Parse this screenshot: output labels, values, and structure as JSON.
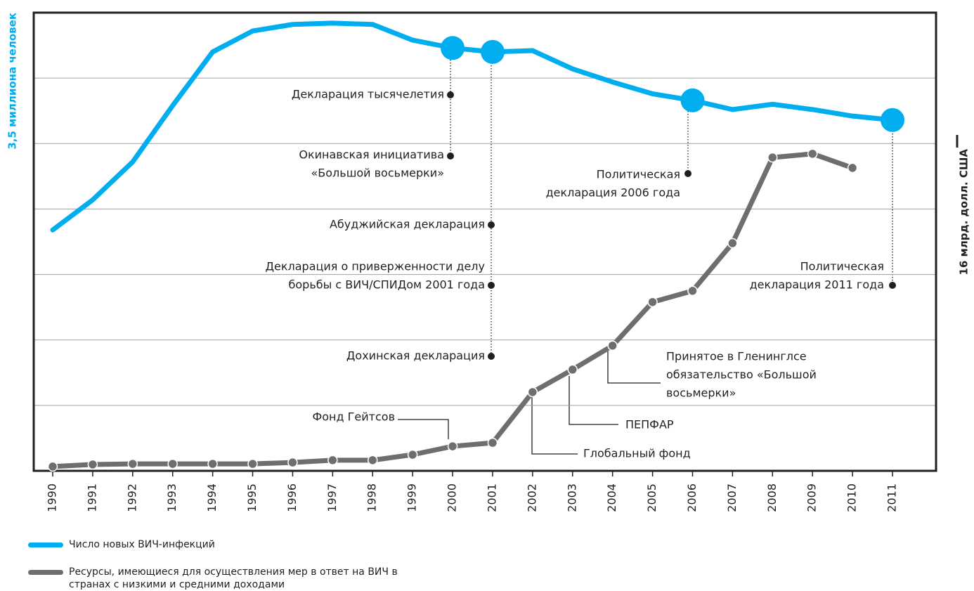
{
  "chart_data": {
    "type": "line",
    "y_label": "3,5 миллиона человек",
    "y2_label": "16 млрд. долл. США",
    "categories": [
      "1990",
      "1991",
      "1992",
      "1993",
      "1994",
      "1995",
      "1996",
      "1997",
      "1998",
      "1999",
      "2000",
      "2001",
      "2002",
      "2003",
      "2004",
      "2005",
      "2006",
      "2007",
      "2008",
      "2009",
      "2010",
      "2011"
    ],
    "ylim": [
      0,
      3.5
    ],
    "yticks": [
      0,
      0.5,
      1,
      1.5,
      2,
      2.5,
      3,
      3.5
    ],
    "y2lim": [
      0,
      22.4
    ],
    "grid": true,
    "series": [
      {
        "name": "Число новых ВИЧ-инфекций",
        "color": "#00aeef",
        "values": [
          1.84,
          2.07,
          2.36,
          2.79,
          3.2,
          3.36,
          3.41,
          3.42,
          3.41,
          3.29,
          3.23,
          3.2,
          3.21,
          3.07,
          2.97,
          2.88,
          2.83,
          2.76,
          2.8,
          2.76,
          2.71,
          2.68
        ]
      },
      {
        "name": "Ресурсы, имеющиеся для осуществления мер в ответ на ВИЧ в странах с низкими и средними доходами",
        "color": "#6d6e71",
        "axis": "y2",
        "values": [
          0.21,
          0.31,
          0.34,
          0.34,
          0.34,
          0.34,
          0.41,
          0.52,
          0.52,
          0.79,
          1.2,
          1.37,
          3.85,
          4.95,
          6.12,
          8.25,
          8.8,
          11.13,
          15.32,
          15.5,
          14.81,
          null
        ]
      }
    ],
    "annotations": [
      {
        "lines": [
          "Декларация тысячелетия"
        ]
      },
      {
        "lines": [
          "Окинавская инициатива",
          "«Большой восьмерки»"
        ]
      },
      {
        "lines": [
          "Абуджийская декларация"
        ]
      },
      {
        "lines": [
          "Декларация о приверженности делу",
          "борьбы с ВИЧ/СПИДом 2001 года"
        ]
      },
      {
        "lines": [
          "Дохинская декларация"
        ]
      },
      {
        "lines": [
          "Политическая",
          "декларация 2006 года"
        ]
      },
      {
        "lines": [
          "Политическая",
          "декларация 2011 года"
        ]
      },
      {
        "lines": [
          "Фонд Гейтсов"
        ]
      },
      {
        "lines": [
          "Принятое в Гленинглсе",
          "обязательство «Большой",
          "восьмерки»"
        ]
      },
      {
        "lines": [
          "ПЕПФАР"
        ]
      },
      {
        "lines": [
          "Глобальный фонд"
        ]
      }
    ]
  }
}
